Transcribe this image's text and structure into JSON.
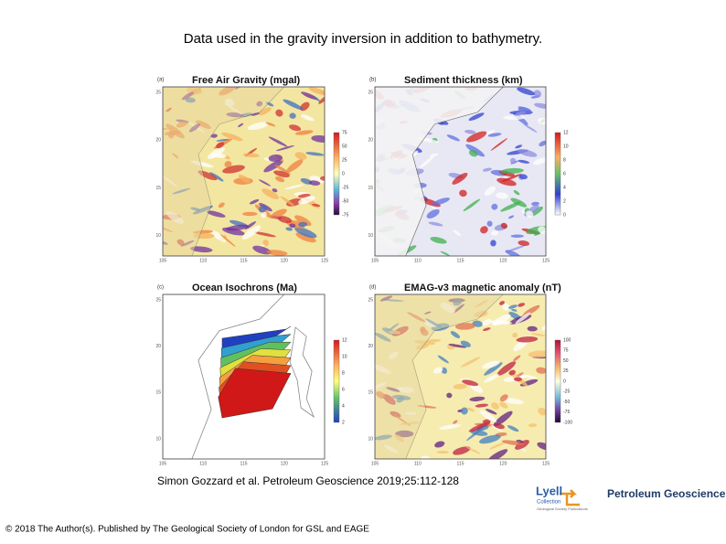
{
  "title": "Data used in the gravity inversion in addition to bathymetry.",
  "panels": [
    {
      "label": "(a)",
      "title": "Free Air Gravity (mgal)",
      "lat_labels": [
        "25",
        "20",
        "15",
        "10"
      ],
      "lon_labels": [
        "105",
        "110",
        "115",
        "120",
        "125"
      ],
      "colorbar": [
        "75",
        "50",
        "25",
        "0",
        "-25",
        "-50",
        "-75"
      ]
    },
    {
      "label": "(b)",
      "title": "Sediment thickness (km)",
      "lat_labels": [
        "25",
        "20",
        "15",
        "10"
      ],
      "lon_labels": [
        "105",
        "110",
        "115",
        "120",
        "125"
      ],
      "colorbar": [
        "12",
        "10",
        "8",
        "6",
        "4",
        "2",
        "0"
      ]
    },
    {
      "label": "(c)",
      "title": "Ocean Isochrons (Ma)",
      "lat_labels": [
        "25",
        "20",
        "15",
        "10"
      ],
      "lon_labels": [
        "105",
        "110",
        "115",
        "120",
        "125"
      ],
      "colorbar": [
        "12",
        "10",
        "8",
        "6",
        "4",
        "2"
      ]
    },
    {
      "label": "(d)",
      "title": "EMAG-v3 magnetic anomaly (nT)",
      "lat_labels": [
        "25",
        "20",
        "15",
        "10"
      ],
      "lon_labels": [
        "105",
        "110",
        "115",
        "120",
        "125"
      ],
      "colorbar": [
        "100",
        "75",
        "50",
        "25",
        "0",
        "-25",
        "-50",
        "-75",
        "-100"
      ]
    }
  ],
  "citation": "Simon Gozzard et al. Petroleum Geoscience 2019;25:112-128",
  "copyright": "© 2018 The Author(s). Published by The Geological Society of London for GSL and EAGE",
  "logo": {
    "lyell": "Lyell",
    "collection": "Collection",
    "tagline": "Geological Society Publications",
    "journal": "Petroleum Geoscience"
  }
}
